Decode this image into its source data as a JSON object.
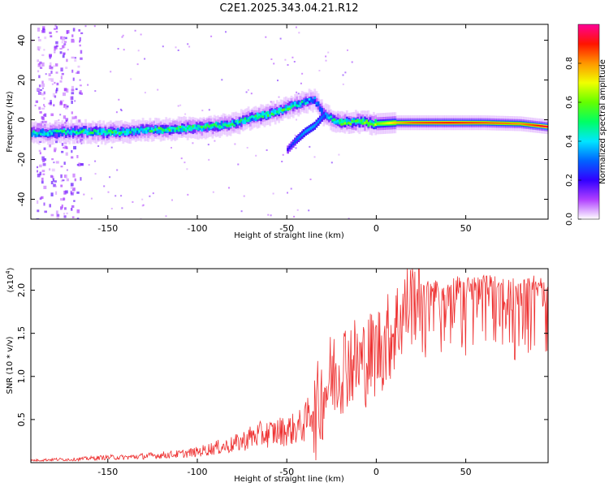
{
  "title": "C2E1.2025.343.04.21.R12",
  "chart_data": [
    {
      "type": "heatmap",
      "xlabel": "Height of straight line (km)",
      "ylabel": "Frequency (Hz)",
      "xlim": [
        -193,
        96
      ],
      "ylim": [
        -50,
        48
      ],
      "x_ticks": [
        -150,
        -100,
        -50,
        0,
        50
      ],
      "x_tick_labels": [
        "-150",
        "-100",
        "-50",
        "0",
        "50"
      ],
      "y_ticks": [
        40,
        20,
        0,
        -20,
        -40
      ],
      "y_tick_labels": [
        "40",
        "20",
        "0",
        "-20",
        "-40"
      ],
      "colorbar": {
        "label": "Normalized spectral amplitude",
        "range": [
          0.0,
          1.0
        ],
        "ticks": [
          0.0,
          0.2,
          0.4,
          0.6,
          0.8
        ],
        "tick_labels": [
          "0.0",
          "0.2",
          "0.4",
          "0.6",
          "0.8"
        ],
        "colors": [
          "#e9d6f7",
          "#8c00ff",
          "#0000ff",
          "#00c8ff",
          "#00ff78",
          "#a0ff00",
          "#ffff00",
          "#ff9600",
          "#ff0000",
          "#ff0090"
        ]
      },
      "ridge": {
        "x": [
          -193,
          -180,
          -170,
          -160,
          -150,
          -140,
          -130,
          -120,
          -110,
          -100,
          -90,
          -80,
          -70,
          -60,
          -50,
          -45,
          -40,
          -35,
          -30,
          -25,
          -20,
          -10,
          0,
          10,
          20,
          40,
          60,
          80,
          95
        ],
        "y": [
          -6.5,
          -6.5,
          -6,
          -6,
          -6.5,
          -6,
          -5,
          -5,
          -4.5,
          -4,
          -3,
          -2,
          1,
          3,
          6,
          7.5,
          9,
          10,
          3,
          0,
          -1.5,
          -1,
          -2,
          -1.5,
          -1.5,
          -1.5,
          -1.5,
          -2,
          -3.5
        ],
        "amplitude": [
          0.4,
          0.45,
          0.45,
          0.45,
          0.5,
          0.45,
          0.45,
          0.5,
          0.5,
          0.5,
          0.5,
          0.45,
          0.45,
          0.5,
          0.5,
          0.45,
          0.4,
          0.3,
          0.35,
          0.45,
          0.55,
          0.55,
          0.6,
          0.75,
          0.85,
          0.9,
          0.85,
          0.8,
          0.95
        ]
      },
      "branch": {
        "x": [
          -50,
          -45,
          -40,
          -35,
          -30
        ],
        "y": [
          -15,
          -10,
          -6,
          -3,
          2
        ],
        "amplitude": [
          0.2,
          0.3,
          0.35,
          0.35,
          0.3
        ]
      }
    },
    {
      "type": "line",
      "xlabel": "Height of straight line (km)",
      "ylabel": "SNR (10 * v/v)",
      "y_multiplier": "(x10",
      "y_multiplier_exp": "4",
      "y_multiplier_close": ")",
      "xlim": [
        -193,
        96
      ],
      "ylim": [
        0,
        2.25
      ],
      "x_ticks": [
        -150,
        -100,
        -50,
        0,
        50
      ],
      "x_tick_labels": [
        "-150",
        "-100",
        "-50",
        "0",
        "50"
      ],
      "y_ticks": [
        0.5,
        1.0,
        1.5,
        2.0
      ],
      "y_tick_labels": [
        "0.5",
        "1.0",
        "1.5",
        "2.0"
      ],
      "color": "#ee3030",
      "series": [
        {
          "x": [
            -193,
            -180,
            -170,
            -160,
            -150,
            -140,
            -130,
            -120,
            -110,
            -100,
            -95,
            -90,
            -85,
            -80,
            -75,
            -70,
            -65,
            -60,
            -55,
            -50,
            -45,
            -40,
            -35,
            -30,
            -25,
            -20,
            -15,
            -10,
            -5,
            0,
            5,
            10,
            15,
            20,
            25,
            30,
            35,
            40,
            50,
            60,
            70,
            80,
            90,
            95
          ],
          "y": [
            0.02,
            0.03,
            0.03,
            0.04,
            0.05,
            0.05,
            0.06,
            0.07,
            0.08,
            0.1,
            0.12,
            0.14,
            0.15,
            0.17,
            0.2,
            0.24,
            0.26,
            0.27,
            0.29,
            0.3,
            0.32,
            0.36,
            0.55,
            0.85,
            1.05,
            1.15,
            1.25,
            1.2,
            1.25,
            1.35,
            1.45,
            1.6,
            1.8,
            1.95,
            2.05,
            2.07,
            2.08,
            2.1,
            2.12,
            2.13,
            2.12,
            2.13,
            2.12,
            2.05
          ]
        }
      ]
    }
  ]
}
